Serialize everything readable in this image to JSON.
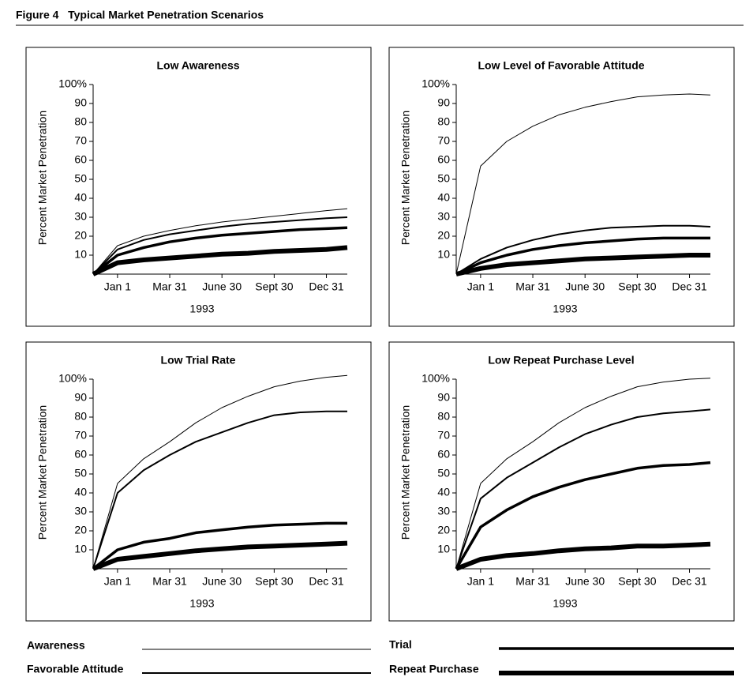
{
  "title": "Figure 4   Typical Market Penetration Scenarios",
  "chart_data": [
    {
      "type": "line",
      "title": "Low Awareness",
      "x_label": "1993",
      "y_label": "Percent Market Penetration",
      "x": [
        -1.4,
        0,
        1.5,
        3,
        4.5,
        6,
        7.5,
        9,
        10.5,
        12,
        13.2
      ],
      "xlim": [
        -1.4,
        13.2
      ],
      "xticks": [
        {
          "value": 0,
          "label": "Jan 1"
        },
        {
          "value": 3,
          "label": "Mar 31"
        },
        {
          "value": 6,
          "label": "June 30"
        },
        {
          "value": 9,
          "label": "Sept 30"
        },
        {
          "value": 12,
          "label": "Dec 31"
        }
      ],
      "ylim": [
        0,
        100
      ],
      "yticks": [
        10,
        20,
        30,
        40,
        50,
        60,
        70,
        80,
        90,
        {
          "value": 100,
          "label": "100%"
        }
      ],
      "series": [
        {
          "name": "Awareness",
          "color": "#000000",
          "width": 1,
          "values": [
            0,
            15,
            20,
            23,
            25.5,
            27.5,
            29,
            30.5,
            32,
            33.5,
            34.5
          ]
        },
        {
          "name": "Favorable Attitude",
          "color": "#000000",
          "width": 2,
          "values": [
            0,
            13,
            18,
            21,
            23,
            25,
            26.5,
            27.5,
            28.5,
            29.5,
            30
          ]
        },
        {
          "name": "Trial",
          "color": "#000000",
          "width": 3.5,
          "values": [
            0,
            10,
            14,
            17,
            19,
            20.5,
            21.5,
            22.5,
            23.5,
            24,
            24.5
          ]
        },
        {
          "name": "Repeat Purchase",
          "color": "#000000",
          "width": 6,
          "values": [
            0,
            6,
            7.5,
            8.5,
            9.5,
            10.5,
            11,
            12,
            12.5,
            13,
            14
          ]
        }
      ]
    },
    {
      "type": "line",
      "title": "Low Level of Favorable Attitude",
      "x_label": "1993",
      "y_label": "Percent Market Penetration",
      "x": [
        -1.4,
        0,
        1.5,
        3,
        4.5,
        6,
        7.5,
        9,
        10.5,
        12,
        13.2
      ],
      "xlim": [
        -1.4,
        13.2
      ],
      "xticks": [
        {
          "value": 0,
          "label": "Jan 1"
        },
        {
          "value": 3,
          "label": "Mar 31"
        },
        {
          "value": 6,
          "label": "June 30"
        },
        {
          "value": 9,
          "label": "Sept 30"
        },
        {
          "value": 12,
          "label": "Dec 31"
        }
      ],
      "ylim": [
        0,
        100
      ],
      "yticks": [
        10,
        20,
        30,
        40,
        50,
        60,
        70,
        80,
        90,
        {
          "value": 100,
          "label": "100%"
        }
      ],
      "series": [
        {
          "name": "Awareness",
          "color": "#000000",
          "width": 1,
          "values": [
            0,
            57,
            70,
            78,
            84,
            88,
            91,
            93.5,
            94.5,
            95,
            94.5
          ]
        },
        {
          "name": "Favorable Attitude",
          "color": "#000000",
          "width": 2,
          "values": [
            0,
            8,
            14,
            18,
            21,
            23,
            24.5,
            25,
            25.5,
            25.5,
            25
          ]
        },
        {
          "name": "Trial",
          "color": "#000000",
          "width": 3.5,
          "values": [
            0,
            6,
            10,
            13,
            15,
            16.5,
            17.5,
            18.5,
            19,
            19,
            19
          ]
        },
        {
          "name": "Repeat Purchase",
          "color": "#000000",
          "width": 6,
          "values": [
            0,
            3,
            5,
            6,
            7,
            8,
            8.5,
            9,
            9.5,
            10,
            10
          ]
        }
      ]
    },
    {
      "type": "line",
      "title": "Low Trial Rate",
      "x_label": "1993",
      "y_label": "Percent Market Penetration",
      "x": [
        -1.4,
        0,
        1.5,
        3,
        4.5,
        6,
        7.5,
        9,
        10.5,
        12,
        13.2
      ],
      "xlim": [
        -1.4,
        13.2
      ],
      "xticks": [
        {
          "value": 0,
          "label": "Jan 1"
        },
        {
          "value": 3,
          "label": "Mar 31"
        },
        {
          "value": 6,
          "label": "June 30"
        },
        {
          "value": 9,
          "label": "Sept 30"
        },
        {
          "value": 12,
          "label": "Dec 31"
        }
      ],
      "ylim": [
        0,
        100
      ],
      "yticks": [
        10,
        20,
        30,
        40,
        50,
        60,
        70,
        80,
        90,
        {
          "value": 100,
          "label": "100%"
        }
      ],
      "series": [
        {
          "name": "Awareness",
          "color": "#000000",
          "width": 1,
          "values": [
            0,
            45,
            58,
            67,
            77,
            85,
            91,
            96,
            99,
            101,
            102
          ]
        },
        {
          "name": "Favorable Attitude",
          "color": "#000000",
          "width": 2,
          "values": [
            0,
            40,
            52,
            60,
            67,
            72,
            77,
            81,
            82.5,
            83,
            83
          ]
        },
        {
          "name": "Trial",
          "color": "#000000",
          "width": 3.5,
          "values": [
            0,
            10,
            14,
            16,
            19,
            20.5,
            22,
            23,
            23.5,
            24,
            24
          ]
        },
        {
          "name": "Repeat Purchase",
          "color": "#000000",
          "width": 6,
          "values": [
            0,
            5,
            6.5,
            8,
            9.5,
            10.5,
            11.5,
            12,
            12.5,
            13,
            13.5
          ]
        }
      ]
    },
    {
      "type": "line",
      "title": "Low Repeat Purchase Level",
      "x_label": "1993",
      "y_label": "Percent Market Penetration",
      "x": [
        -1.4,
        0,
        1.5,
        3,
        4.5,
        6,
        7.5,
        9,
        10.5,
        12,
        13.2
      ],
      "xlim": [
        -1.4,
        13.2
      ],
      "xticks": [
        {
          "value": 0,
          "label": "Jan 1"
        },
        {
          "value": 3,
          "label": "Mar 31"
        },
        {
          "value": 6,
          "label": "June 30"
        },
        {
          "value": 9,
          "label": "Sept 30"
        },
        {
          "value": 12,
          "label": "Dec 31"
        }
      ],
      "ylim": [
        0,
        100
      ],
      "yticks": [
        10,
        20,
        30,
        40,
        50,
        60,
        70,
        80,
        90,
        {
          "value": 100,
          "label": "100%"
        }
      ],
      "series": [
        {
          "name": "Awareness",
          "color": "#000000",
          "width": 1,
          "values": [
            0,
            45,
            58,
            67,
            77,
            85,
            91,
            96,
            98.5,
            100,
            100.5
          ]
        },
        {
          "name": "Favorable Attitude",
          "color": "#000000",
          "width": 2,
          "values": [
            0,
            37,
            48,
            56,
            64,
            71,
            76,
            80,
            82,
            83,
            84
          ]
        },
        {
          "name": "Trial",
          "color": "#000000",
          "width": 3.5,
          "values": [
            0,
            22,
            31,
            38,
            43,
            47,
            50,
            53,
            54.5,
            55,
            56
          ]
        },
        {
          "name": "Repeat Purchase",
          "color": "#000000",
          "width": 6,
          "values": [
            0,
            5,
            7,
            8,
            9.5,
            10.5,
            11,
            12,
            12,
            12.5,
            13
          ]
        }
      ]
    }
  ]
}
